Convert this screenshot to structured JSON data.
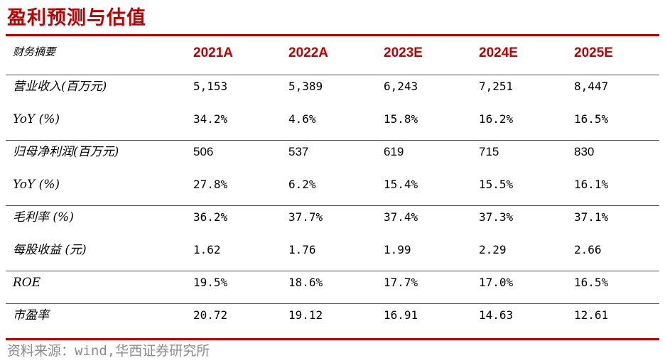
{
  "title": "盈利预测与估值",
  "header": {
    "label": "财务摘要",
    "years": [
      "2021A",
      "2022A",
      "2023E",
      "2024E",
      "2025E"
    ]
  },
  "rows": [
    {
      "label": "营业收入(百万元)",
      "values": [
        "5,153",
        "5,389",
        "6,243",
        "7,251",
        "8,447"
      ],
      "style": "mono"
    },
    {
      "label": "YoY (%)",
      "values": [
        "34.2%",
        "4.6%",
        "15.8%",
        "16.2%",
        "16.5%"
      ],
      "style": "mono"
    },
    {
      "label": "归母净利润(百万元)",
      "values": [
        "506",
        "537",
        "619",
        "715",
        "830"
      ],
      "style": "prop"
    },
    {
      "label": "YoY (%)",
      "values": [
        "27.8%",
        "6.2%",
        "15.4%",
        "15.5%",
        "16.1%"
      ],
      "style": "mono"
    },
    {
      "label": "毛利率 (%)",
      "values": [
        "36.2%",
        "37.7%",
        "37.4%",
        "37.3%",
        "37.1%"
      ],
      "style": "mono"
    },
    {
      "label": "每股收益 (元)",
      "values": [
        "1.62",
        "1.76",
        "1.99",
        "2.29",
        "2.66"
      ],
      "style": "mono"
    },
    {
      "label": "ROE",
      "values": [
        "19.5%",
        "18.6%",
        "17.7%",
        "17.0%",
        "16.5%"
      ],
      "style": "mono"
    },
    {
      "label": "市盈率",
      "values": [
        "20.72",
        "19.12",
        "16.91",
        "14.63",
        "12.61"
      ],
      "style": "mono"
    }
  ],
  "source": "资料来源：wind,华西证券研究所",
  "colors": {
    "accent": "#c00000",
    "source_text": "#8c8c8c"
  }
}
